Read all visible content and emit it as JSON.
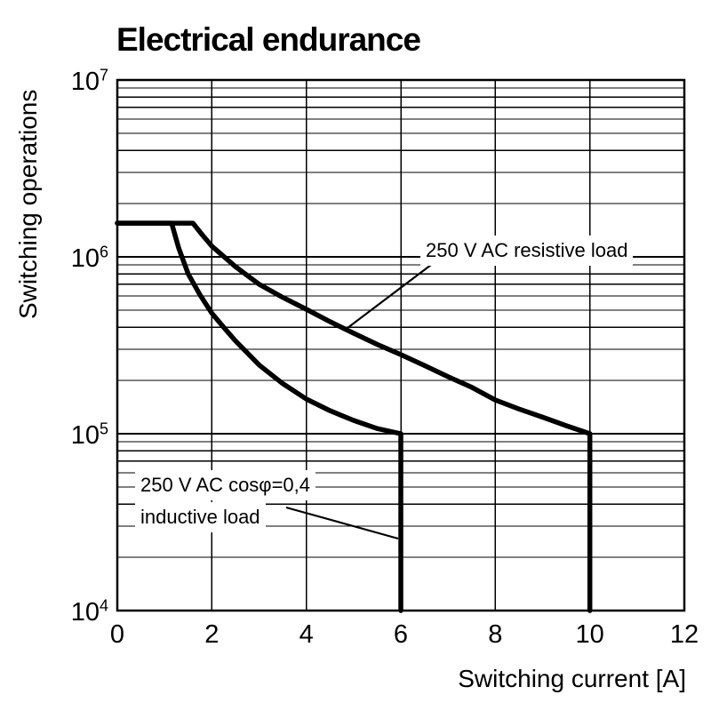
{
  "chart_data": {
    "type": "line",
    "title": "Electrical endurance",
    "xlabel": "Switching current [A]",
    "ylabel": "Switching operations",
    "x_axis": {
      "min": 0,
      "max": 12,
      "ticks": [
        0,
        2,
        4,
        6,
        8,
        10,
        12
      ]
    },
    "y_axis": {
      "scale": "log",
      "min": 10000,
      "max": 10000000,
      "major_exponents": [
        4,
        5,
        6,
        7
      ],
      "minor_multiples": [
        2,
        3,
        4,
        5,
        6,
        7,
        8,
        9
      ],
      "tick_label_base": "10"
    },
    "grid": {
      "on": true,
      "color": "#000000",
      "vertical_step_a": 2
    },
    "series": [
      {
        "id": "resistive",
        "label": "250 V AC resistive load",
        "color": "#000000",
        "plateau": {
          "from_a": 0,
          "to_a": 1.6,
          "ops": 1550000
        },
        "curve_points": [
          [
            1.6,
            1550000
          ],
          [
            1.8,
            1330000
          ],
          [
            2,
            1150000
          ],
          [
            2.5,
            880000
          ],
          [
            3,
            700000
          ],
          [
            3.5,
            590000
          ],
          [
            4,
            505000
          ],
          [
            4.5,
            430000
          ],
          [
            5,
            370000
          ],
          [
            5.5,
            320000
          ],
          [
            6,
            280000
          ],
          [
            6.5,
            243000
          ],
          [
            7,
            210000
          ],
          [
            7.5,
            183000
          ],
          [
            8,
            155000
          ],
          [
            8.5,
            138000
          ],
          [
            9,
            124000
          ],
          [
            9.5,
            111000
          ],
          [
            10,
            100000
          ]
        ],
        "cutoff": {
          "at_a": 10,
          "from_ops": 100000,
          "to_ops": 10000
        }
      },
      {
        "id": "inductive",
        "label": "250 V AC cosφ=0,4 inductive load",
        "color": "#000000",
        "plateau": {
          "from_a": 0,
          "to_a": 1.15,
          "ops": 1550000
        },
        "curve_points": [
          [
            1.15,
            1550000
          ],
          [
            1.3,
            1120000
          ],
          [
            1.5,
            800000
          ],
          [
            1.75,
            610000
          ],
          [
            2,
            480000
          ],
          [
            2.25,
            400000
          ],
          [
            2.5,
            335000
          ],
          [
            3,
            245000
          ],
          [
            3.5,
            192000
          ],
          [
            4,
            157000
          ],
          [
            4.5,
            135000
          ],
          [
            5,
            119000
          ],
          [
            5.5,
            107000
          ],
          [
            6,
            100000
          ]
        ],
        "cutoff": {
          "at_a": 6,
          "from_ops": 100000,
          "to_ops": 10000
        }
      }
    ],
    "annotations": [
      {
        "id": "resistive-label",
        "lines": [
          "250 V AC resistive load"
        ]
      },
      {
        "id": "inductive-label",
        "lines": [
          "250 V AC cosφ=0,4",
          "inductive load"
        ]
      }
    ]
  }
}
